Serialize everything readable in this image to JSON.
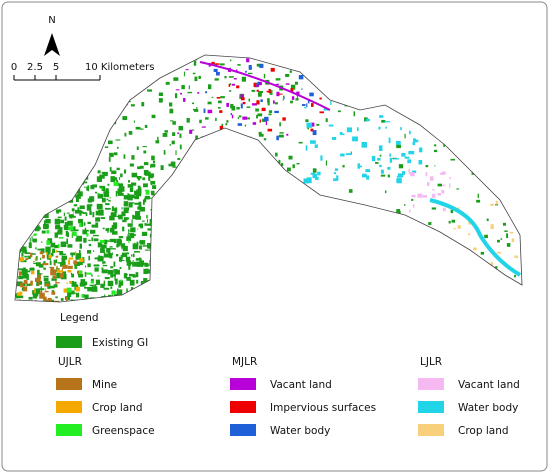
{
  "north": "N",
  "scale_bar": {
    "labels": [
      "0",
      "2.5",
      "5",
      "10 Kilometers"
    ]
  },
  "legend": {
    "title": "Legend",
    "existing": {
      "label": "Existing GI",
      "color": "#1a9e1a"
    },
    "groups": [
      {
        "name": "UJLR",
        "items": [
          {
            "label": "Mine",
            "color": "#b8741a"
          },
          {
            "label": "Crop land",
            "color": "#f5a800"
          },
          {
            "label": "Greenspace",
            "color": "#22ee22"
          }
        ]
      },
      {
        "name": "MJLR",
        "items": [
          {
            "label": "Vacant land",
            "color": "#b800d8"
          },
          {
            "label": "Impervious surfaces",
            "color": "#ee0000"
          },
          {
            "label": "Water body",
            "color": "#1f5fd8"
          }
        ]
      },
      {
        "name": "LJLR",
        "items": [
          {
            "label": "Vacant land",
            "color": "#f5b8f0"
          },
          {
            "label": "Water body",
            "color": "#22d4e8"
          },
          {
            "label": "Crop land",
            "color": "#f8cf7a"
          }
        ]
      }
    ]
  }
}
